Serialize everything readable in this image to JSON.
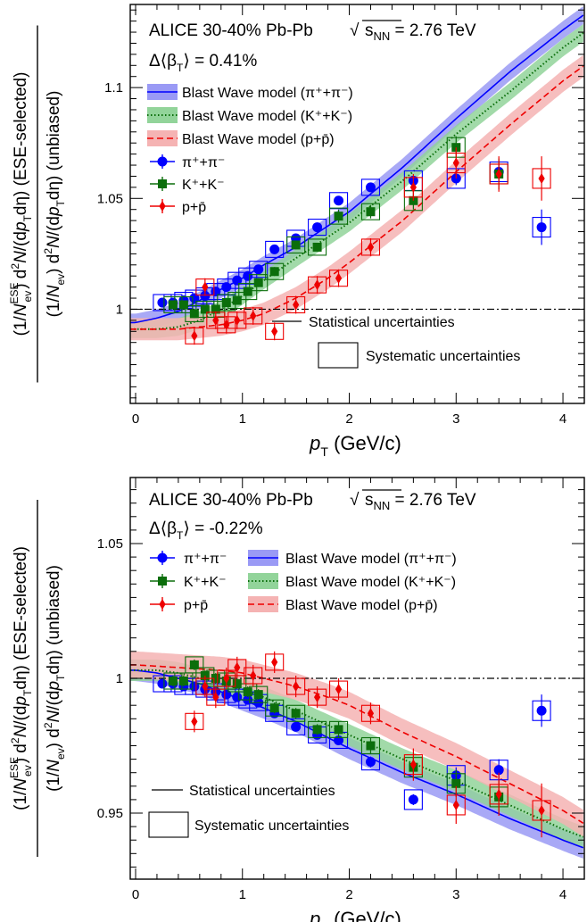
{
  "chart_data": [
    {
      "type": "scatter",
      "header": "ALICE 30-40% Pb-Pb",
      "energy": "= 2.76 TeV",
      "delta_beta": "= 0.41%",
      "xlabel": "(GeV/c)",
      "ylabel_num": "(ESE-selected)",
      "ylabel_den": "(unbiased)",
      "xlim": [
        -0.05,
        4.2
      ],
      "ylim": [
        0.9575,
        1.1375
      ],
      "x_ticks": [
        0,
        1,
        2,
        3,
        4
      ],
      "y_ticks": [
        1,
        1.05,
        1.1
      ],
      "reference_line": 1,
      "legend": {
        "models": [
          "Blast Wave model (π⁺+π⁻)",
          "Blast Wave model (K⁺+K⁻)",
          "Blast Wave model (p+p̄)"
        ],
        "data": [
          "π⁺+π⁻",
          "K⁺+K⁻",
          "p+p̄"
        ],
        "statistical": "Statistical uncertainties",
        "systematic": "Systematic uncertainties"
      },
      "colors": {
        "pion": "#0000ff",
        "kaon": "#0b6e0b",
        "proton": "#ee0000",
        "pion_band": "#9a9af5",
        "kaon_band": "#92d49a",
        "proton_band": "#f5b3b3"
      },
      "series": [
        {
          "name": "π⁺+π⁻",
          "marker": "circle",
          "x": [
            0.25,
            0.35,
            0.45,
            0.55,
            0.65,
            0.75,
            0.85,
            0.95,
            1.05,
            1.15,
            1.3,
            1.5,
            1.7,
            1.9,
            2.2,
            2.6,
            3.0,
            3.4,
            3.8
          ],
          "y": [
            1.003,
            1.003,
            1.004,
            1.005,
            1.006,
            1.008,
            1.01,
            1.013,
            1.015,
            1.018,
            1.027,
            1.032,
            1.037,
            1.049,
            1.055,
            1.058,
            1.059,
            1.062,
            1.037
          ],
          "stat": [
            0.001,
            0.001,
            0.001,
            0.001,
            0.001,
            0.001,
            0.001,
            0.001,
            0.001,
            0.001,
            0.001,
            0.001,
            0.001,
            0.001,
            0.002,
            0.002,
            0.003,
            0.004,
            0.008
          ]
        },
        {
          "name": "K⁺+K⁻",
          "marker": "square",
          "x": [
            0.35,
            0.45,
            0.55,
            0.65,
            0.75,
            0.85,
            0.95,
            1.05,
            1.15,
            1.3,
            1.5,
            1.7,
            1.9,
            2.2,
            2.6,
            3.0,
            3.4
          ],
          "y": [
            1.002,
            1.002,
            0.998,
            1.0,
            1.0,
            1.003,
            1.004,
            1.008,
            1.012,
            1.017,
            1.029,
            1.028,
            1.042,
            1.044,
            1.049,
            1.073,
            1.061
          ],
          "stat": [
            0.002,
            0.002,
            0.002,
            0.002,
            0.002,
            0.002,
            0.002,
            0.002,
            0.002,
            0.002,
            0.002,
            0.002,
            0.003,
            0.003,
            0.004,
            0.005,
            0.007
          ]
        },
        {
          "name": "p+p̄",
          "marker": "diamond",
          "x": [
            0.55,
            0.65,
            0.75,
            0.85,
            0.95,
            1.1,
            1.3,
            1.5,
            1.7,
            1.9,
            2.2,
            2.6,
            3.0,
            3.4,
            3.8
          ],
          "y": [
            0.988,
            1.01,
            0.995,
            0.993,
            0.995,
            0.997,
            0.99,
            1.002,
            1.011,
            1.014,
            1.028,
            1.055,
            1.066,
            1.061,
            1.059
          ],
          "stat": [
            0.004,
            0.004,
            0.004,
            0.004,
            0.004,
            0.004,
            0.004,
            0.004,
            0.004,
            0.004,
            0.004,
            0.006,
            0.007,
            0.008,
            0.01
          ]
        }
      ],
      "models": [
        {
          "name": "Blast Wave model (π⁺+π⁻)",
          "style": "solid",
          "x": [
            0.0,
            0.2,
            0.4,
            0.6,
            0.8,
            1.0,
            1.2,
            1.5,
            2.0,
            2.5,
            3.0,
            3.5,
            4.0,
            4.2
          ],
          "y": [
            0.994,
            0.996,
            0.999,
            1.004,
            1.009,
            1.014,
            1.02,
            1.028,
            1.044,
            1.064,
            1.086,
            1.107,
            1.126,
            1.133
          ],
          "half_width": 0.004
        },
        {
          "name": "Blast Wave model (K⁺+K⁻)",
          "style": "dotted",
          "x": [
            0.0,
            0.2,
            0.4,
            0.6,
            0.8,
            1.0,
            1.2,
            1.5,
            2.0,
            2.5,
            3.0,
            3.5,
            4.0,
            4.2
          ],
          "y": [
            0.991,
            0.991,
            0.992,
            0.995,
            1.0,
            1.006,
            1.013,
            1.023,
            1.039,
            1.058,
            1.079,
            1.098,
            1.118,
            1.125
          ],
          "half_width": 0.004
        },
        {
          "name": "Blast Wave model (p+p̄)",
          "style": "dashed",
          "x": [
            0.0,
            0.4,
            0.8,
            1.0,
            1.2,
            1.5,
            1.8,
            2.0,
            2.5,
            3.0,
            3.5,
            4.0,
            4.2
          ],
          "y": [
            0.991,
            0.991,
            0.993,
            0.995,
            0.998,
            1.005,
            1.014,
            1.021,
            1.04,
            1.062,
            1.083,
            1.103,
            1.11
          ],
          "half_width": 0.005
        }
      ]
    },
    {
      "type": "scatter",
      "header": "ALICE 30-40% Pb-Pb",
      "energy": "= 2.76 TeV",
      "delta_beta": "= -0.22%",
      "xlabel": "(GeV/c)",
      "ylabel_num": "(ESE-selected)",
      "ylabel_den": "(unbiased)",
      "xlim": [
        -0.05,
        4.2
      ],
      "ylim": [
        0.9255,
        1.0745
      ],
      "x_ticks": [
        0,
        1,
        2,
        3,
        4
      ],
      "y_ticks": [
        0.95,
        1,
        1.05
      ],
      "reference_line": 1,
      "legend": {
        "models": [
          "Blast Wave model (π⁺+π⁻)",
          "Blast Wave model (K⁺+K⁻)",
          "Blast Wave model (p+p̄)"
        ],
        "data": [
          "π⁺+π⁻",
          "K⁺+K⁻",
          "p+p̄"
        ],
        "statistical": "Statistical uncertainties",
        "systematic": "Systematic uncertainties"
      },
      "colors": {
        "pion": "#0000ff",
        "kaon": "#0b6e0b",
        "proton": "#ee0000",
        "pion_band": "#9a9af5",
        "kaon_band": "#92d49a",
        "proton_band": "#f5b3b3"
      },
      "series": [
        {
          "name": "π⁺+π⁻",
          "marker": "circle",
          "x": [
            0.25,
            0.35,
            0.45,
            0.55,
            0.65,
            0.75,
            0.85,
            0.95,
            1.05,
            1.15,
            1.3,
            1.5,
            1.7,
            1.9,
            2.2,
            2.6,
            3.0,
            3.4,
            3.8
          ],
          "y": [
            0.998,
            0.998,
            0.997,
            0.997,
            0.996,
            0.995,
            0.994,
            0.993,
            0.992,
            0.991,
            0.987,
            0.982,
            0.979,
            0.977,
            0.969,
            0.955,
            0.964,
            0.966,
            0.988
          ],
          "stat": [
            0.001,
            0.001,
            0.001,
            0.001,
            0.001,
            0.001,
            0.001,
            0.001,
            0.001,
            0.001,
            0.001,
            0.001,
            0.001,
            0.001,
            0.002,
            0.002,
            0.003,
            0.004,
            0.006
          ]
        },
        {
          "name": "K⁺+K⁻",
          "marker": "square",
          "x": [
            0.35,
            0.45,
            0.55,
            0.65,
            0.75,
            0.85,
            0.95,
            1.05,
            1.15,
            1.3,
            1.5,
            1.7,
            1.9,
            2.2,
            2.6,
            3.0,
            3.4
          ],
          "y": [
            0.999,
            0.999,
            1.005,
            1.001,
            1.0,
            0.999,
            0.998,
            0.995,
            0.994,
            0.989,
            0.987,
            0.981,
            0.981,
            0.975,
            0.967,
            0.961,
            0.956
          ],
          "stat": [
            0.002,
            0.002,
            0.002,
            0.002,
            0.002,
            0.002,
            0.002,
            0.002,
            0.002,
            0.002,
            0.002,
            0.002,
            0.003,
            0.003,
            0.004,
            0.005,
            0.006
          ]
        },
        {
          "name": "p+p̄",
          "marker": "diamond",
          "x": [
            0.55,
            0.65,
            0.75,
            0.85,
            0.95,
            1.1,
            1.3,
            1.5,
            1.7,
            1.9,
            2.2,
            2.6,
            3.0,
            3.4,
            3.8
          ],
          "y": [
            0.984,
            0.997,
            0.993,
            1.0,
            1.004,
            1.001,
            1.006,
            0.997,
            0.993,
            0.996,
            0.987,
            0.968,
            0.953,
            0.957,
            0.951
          ],
          "stat": [
            0.004,
            0.004,
            0.004,
            0.004,
            0.004,
            0.004,
            0.004,
            0.004,
            0.004,
            0.004,
            0.004,
            0.006,
            0.007,
            0.008,
            0.01
          ]
        }
      ],
      "models": [
        {
          "name": "Blast Wave model (π⁺+π⁻)",
          "style": "solid",
          "x": [
            0.0,
            0.2,
            0.4,
            0.6,
            0.8,
            1.0,
            1.2,
            1.5,
            2.0,
            2.5,
            3.0,
            3.5,
            4.0,
            4.2
          ],
          "y": [
            1.003,
            1.002,
            1.0,
            0.998,
            0.995,
            0.992,
            0.989,
            0.984,
            0.974,
            0.965,
            0.957,
            0.948,
            0.94,
            0.937
          ],
          "half_width": 0.004
        },
        {
          "name": "Blast Wave model (K⁺+K⁻)",
          "style": "dotted",
          "x": [
            0.0,
            0.2,
            0.4,
            0.6,
            0.8,
            1.0,
            1.2,
            1.5,
            2.0,
            2.5,
            3.0,
            3.5,
            4.0,
            4.2
          ],
          "y": [
            1.003,
            1.003,
            1.002,
            1.0,
            0.998,
            0.996,
            0.993,
            0.988,
            0.979,
            0.97,
            0.962,
            0.953,
            0.944,
            0.941
          ],
          "half_width": 0.004
        },
        {
          "name": "Blast Wave model (p+p̄)",
          "style": "dashed",
          "x": [
            0.0,
            0.4,
            0.8,
            1.0,
            1.2,
            1.5,
            1.8,
            2.0,
            2.5,
            3.0,
            3.5,
            4.0,
            4.2
          ],
          "y": [
            1.005,
            1.004,
            1.003,
            1.002,
            1.0,
            0.997,
            0.993,
            0.99,
            0.98,
            0.971,
            0.961,
            0.951,
            0.946
          ],
          "half_width": 0.005
        }
      ]
    }
  ]
}
